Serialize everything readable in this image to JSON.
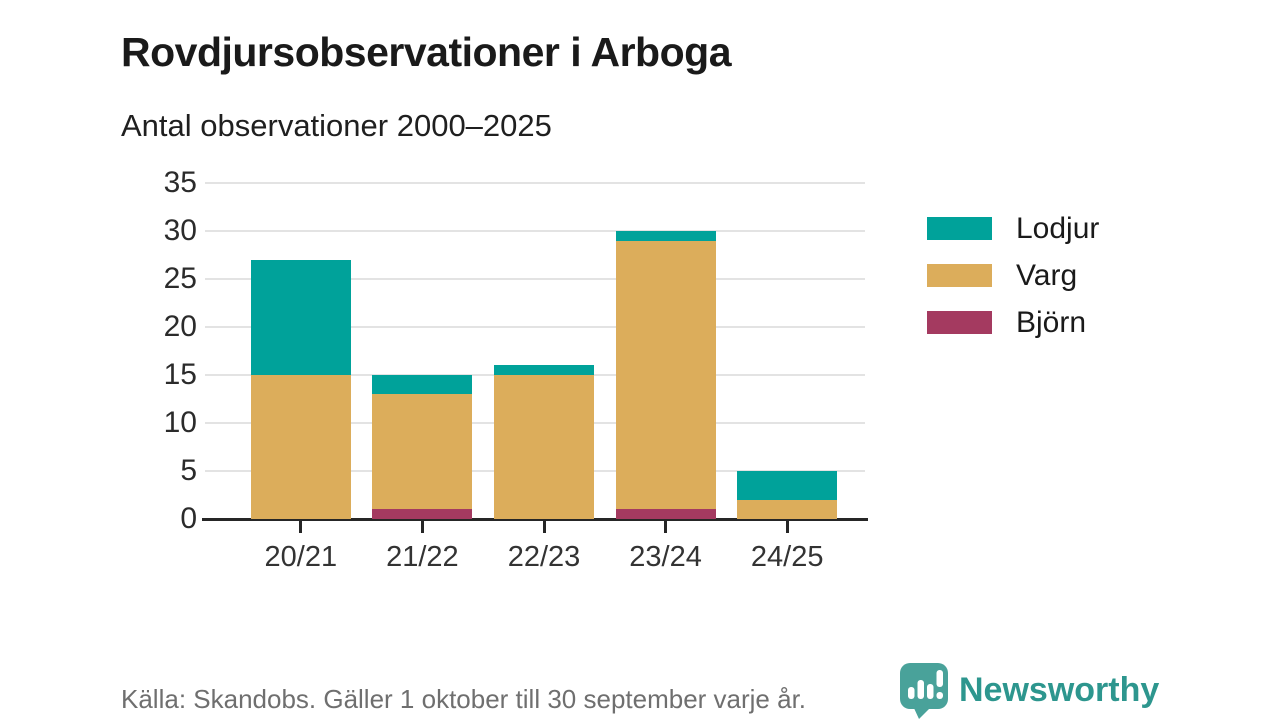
{
  "header": {
    "title": "Rovdjursobservationer i Arboga",
    "subtitle": "Antal observationer 2000–2025"
  },
  "chart_data": {
    "type": "bar",
    "stacked": true,
    "title": "Rovdjursobservationer i Arboga",
    "subtitle": "Antal observationer 2000–2025",
    "categories": [
      "20/21",
      "21/22",
      "22/23",
      "23/24",
      "24/25"
    ],
    "series": [
      {
        "name": "Björn",
        "color": "#a43a60",
        "values": [
          0,
          1,
          0,
          1,
          0
        ]
      },
      {
        "name": "Varg",
        "color": "#dcad5b",
        "values": [
          15,
          12,
          15,
          28,
          2
        ]
      },
      {
        "name": "Lodjur",
        "color": "#00a29a",
        "values": [
          12,
          2,
          1,
          1,
          3
        ]
      }
    ],
    "totals": [
      27,
      15,
      16,
      30,
      5
    ],
    "yticks": [
      0,
      5,
      10,
      15,
      20,
      25,
      30,
      35
    ],
    "ylim": [
      0,
      35
    ],
    "xlabel": "",
    "ylabel": "",
    "grid": true,
    "legend_position": "right",
    "legend_order": [
      "Lodjur",
      "Varg",
      "Björn"
    ]
  },
  "footer": {
    "source": "Källa: Skandobs. Gäller 1 oktober till 30 september varje år.",
    "brand": "Newsworthy"
  },
  "colors": {
    "lodjur": "#00a29a",
    "varg": "#dcad5b",
    "bjorn": "#a43a60",
    "axis": "#262626",
    "gridline": "#e3e3e3",
    "brand_teal": "#2d968e",
    "logo_teal": "#49a29a"
  }
}
